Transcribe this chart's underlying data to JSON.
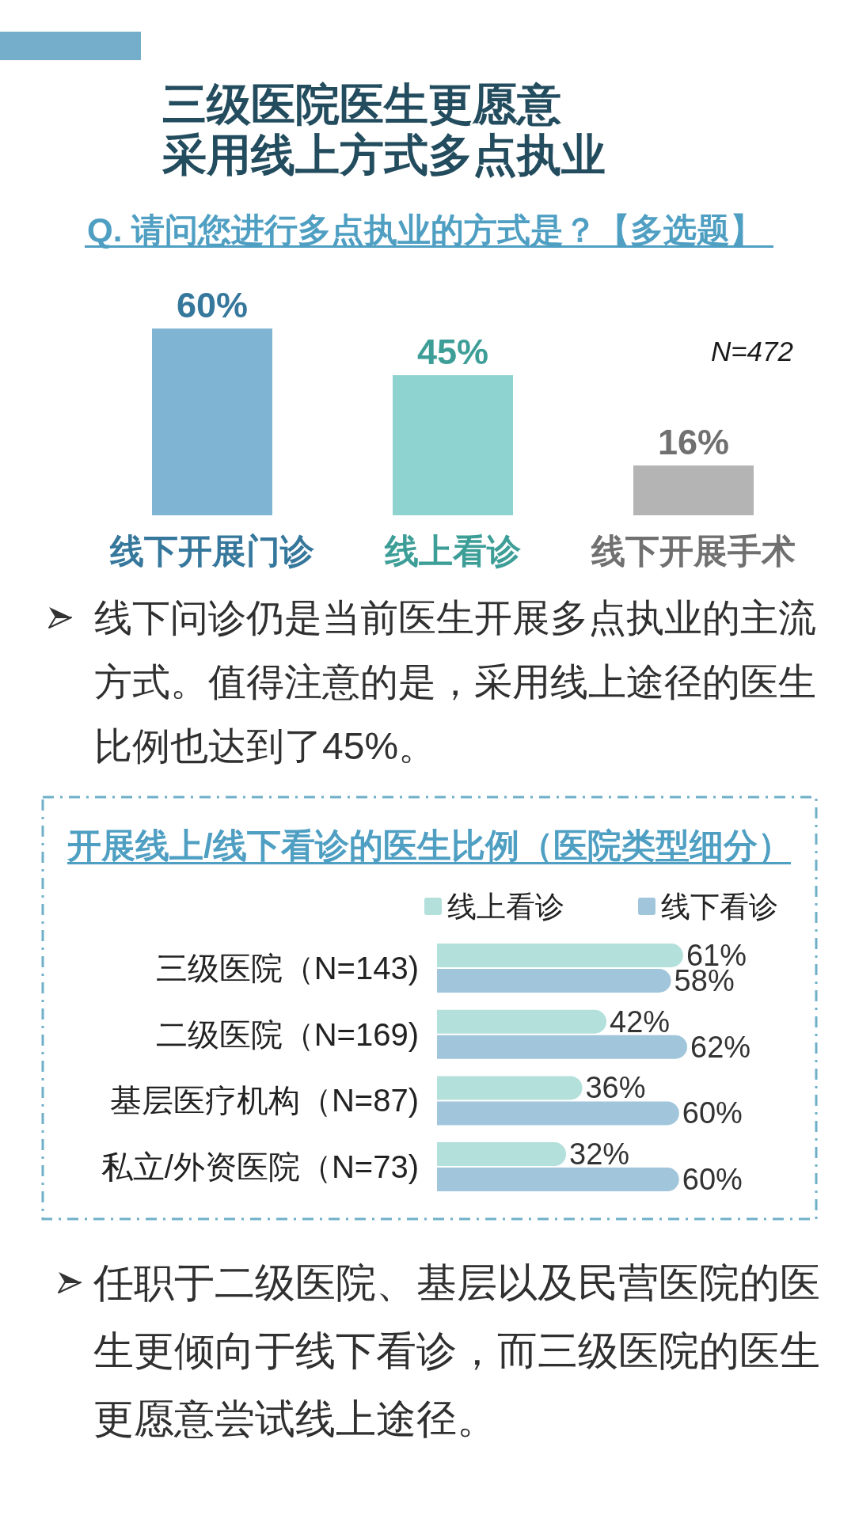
{
  "chart_data": [
    {
      "type": "bar",
      "title": "三级医院医生更愿意采用线上方式多点执业",
      "subtitle": "Q. 请问您进行多点执业的方式是？【多选题】",
      "categories": [
        "线下开展门诊",
        "线上看诊",
        "线下开展手术"
      ],
      "values": [
        60,
        45,
        16
      ],
      "value_labels": [
        "60%",
        "45%",
        "16%"
      ],
      "colors": [
        "#7fb5d3",
        "#8ed3cf",
        "#b4b4b4"
      ],
      "tick_labels": "x",
      "annotations": [
        "N=472",
        "线下问诊仍是当前医生开展多点执业的主流方式。值得注意的是，采用线上途径的医生比例也达到了45%。"
      ]
    },
    {
      "type": "bar",
      "orientation": "horizontal",
      "title": "开展线上/线下看诊的医生比例（医院类型细分）",
      "categories": [
        "三级医院（N=143)",
        "二级医院（N=169)",
        "基层医疗机构（N=87)",
        "私立/外资医院（N=73)"
      ],
      "series": [
        {
          "name": "线上看诊",
          "color": "#b3e0db",
          "values": [
            61,
            42,
            36,
            32
          ],
          "value_labels": [
            "61%",
            "42%",
            "36%",
            "32%"
          ]
        },
        {
          "name": "线下看诊",
          "color": "#a1c6dc",
          "values": [
            58,
            62,
            60,
            60
          ],
          "value_labels": [
            "58%",
            "62%",
            "60%",
            "60%"
          ]
        }
      ],
      "legend": "top right",
      "tick_labels": "y",
      "annotations": [
        "任职于二级医院、基层以及民营医院的医生更倾向于线下看诊，而三级医院的医生更愿意尝试线上途径。"
      ]
    }
  ]
}
